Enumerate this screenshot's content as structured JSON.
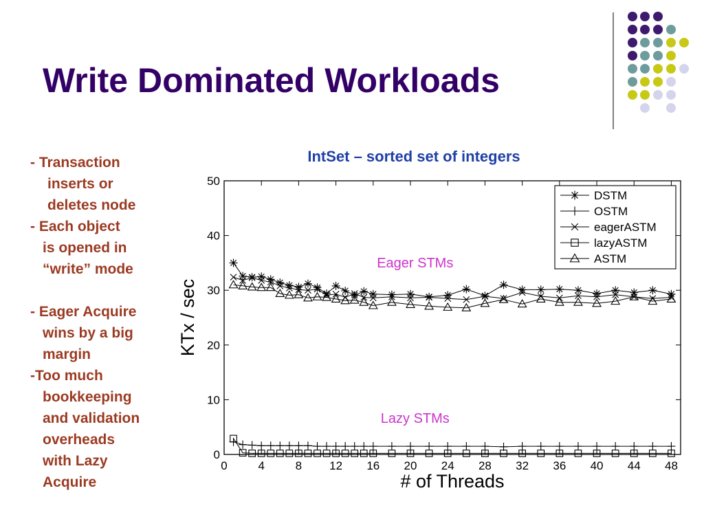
{
  "slide": {
    "title": "Write Dominated Workloads",
    "bullets": [
      {
        "prefix": "- ",
        "lines": [
          "Transaction",
          "inserts or",
          "deletes node"
        ]
      },
      {
        "prefix": "- ",
        "lines": [
          "Each object",
          "is opened in",
          "“write” mode"
        ]
      },
      {
        "prefix": "- ",
        "lines": [
          "Eager Acquire",
          "wins by a big",
          "margin"
        ]
      },
      {
        "prefix": "-",
        "lines": [
          "Too much",
          "bookkeeping",
          "and validation",
          "overheads",
          "with Lazy",
          "Acquire"
        ]
      }
    ],
    "colors": {
      "title": "#330066",
      "bullets": "#9b3a22",
      "chart_title": "#1f3fa8",
      "annotation": "#cc33cc"
    },
    "decoration": {
      "dot_colors": {
        "purple": "#3d1a6e",
        "teal": "#6e9c9c",
        "yellow": "#c8c816",
        "lavender": "#d4d4ec"
      }
    }
  },
  "chart_data": {
    "type": "line",
    "title": "IntSet – sorted set of integers",
    "xlabel": "# of Threads",
    "ylabel": "KTx / sec",
    "xlim": [
      0,
      49
    ],
    "ylim": [
      0,
      50
    ],
    "xticks": [
      0,
      4,
      8,
      12,
      16,
      20,
      24,
      28,
      32,
      36,
      40,
      44,
      48
    ],
    "yticks": [
      0,
      10,
      20,
      30,
      40,
      50
    ],
    "legend_position": "top-right",
    "annotations": [
      {
        "text": "Eager STMs",
        "x": 20.5,
        "y": 34.2
      },
      {
        "text": "Lazy STMs",
        "x": 20.5,
        "y": 5.8
      }
    ],
    "series": [
      {
        "name": "DSTM",
        "marker": "asterisk",
        "x": [
          1,
          2,
          3,
          4,
          5,
          6,
          7,
          8,
          9,
          10,
          11,
          12,
          13,
          14,
          15,
          16,
          18,
          20,
          22,
          24,
          26,
          28,
          30,
          32,
          34,
          36,
          38,
          40,
          42,
          44,
          46,
          48
        ],
        "y": [
          35,
          32.6,
          32.4,
          32.5,
          32,
          31.4,
          30.9,
          30.6,
          31.2,
          30.5,
          29.4,
          30.8,
          29.9,
          29.1,
          29.8,
          29.3,
          29.2,
          29.3,
          28.8,
          29.1,
          30.2,
          29,
          31,
          30.1,
          30.1,
          30.2,
          30,
          29.4,
          30,
          29.6,
          30,
          29.3
        ]
      },
      {
        "name": "OSTM",
        "marker": "plus",
        "x": [
          1,
          2,
          3,
          4,
          5,
          6,
          7,
          8,
          9,
          10,
          11,
          12,
          13,
          14,
          15,
          16,
          18,
          20,
          22,
          24,
          26,
          28,
          30,
          32,
          34,
          36,
          38,
          40,
          42,
          44,
          46,
          48
        ],
        "y": [
          2.3,
          1.8,
          1.7,
          1.6,
          1.6,
          1.6,
          1.6,
          1.6,
          1.6,
          1.5,
          1.5,
          1.5,
          1.5,
          1.5,
          1.5,
          1.5,
          1.5,
          1.5,
          1.5,
          1.5,
          1.5,
          1.5,
          1.4,
          1.5,
          1.5,
          1.5,
          1.5,
          1.5,
          1.5,
          1.5,
          1.5,
          1.5
        ]
      },
      {
        "name": "eagerASTM",
        "marker": "cross",
        "x": [
          1,
          2,
          3,
          4,
          5,
          6,
          7,
          8,
          9,
          10,
          11,
          12,
          13,
          14,
          15,
          16,
          18,
          20,
          22,
          24,
          26,
          28,
          30,
          32,
          34,
          36,
          38,
          40,
          42,
          44,
          46,
          48
        ],
        "y": [
          32.4,
          31.8,
          32.3,
          31.8,
          31.5,
          30.8,
          30.4,
          30.1,
          30,
          30.2,
          29.1,
          29.3,
          28.7,
          29.4,
          28.7,
          28.6,
          28.8,
          28.6,
          28.7,
          28.5,
          28.3,
          28.9,
          28.5,
          29.6,
          28.9,
          28.6,
          29,
          28.8,
          29.2,
          28.8,
          28.5,
          28.7
        ]
      },
      {
        "name": "lazyASTM",
        "marker": "square",
        "x": [
          1,
          2,
          3,
          4,
          5,
          6,
          7,
          8,
          9,
          10,
          11,
          12,
          13,
          14,
          15,
          16,
          18,
          20,
          22,
          24,
          26,
          28,
          30,
          32,
          34,
          36,
          38,
          40,
          42,
          44,
          46,
          48
        ],
        "y": [
          2.9,
          0.3,
          0.2,
          0.2,
          0.2,
          0.2,
          0.2,
          0.2,
          0.2,
          0.2,
          0.2,
          0.2,
          0.2,
          0.2,
          0.2,
          0.2,
          0.2,
          0.2,
          0.2,
          0.2,
          0.2,
          0.2,
          0.2,
          0.2,
          0.2,
          0.2,
          0.2,
          0.2,
          0.2,
          0.2,
          0.2,
          0.2
        ]
      },
      {
        "name": "ASTM",
        "marker": "triangle",
        "x": [
          1,
          2,
          3,
          4,
          5,
          6,
          7,
          8,
          9,
          10,
          11,
          12,
          13,
          14,
          15,
          16,
          18,
          20,
          22,
          24,
          26,
          28,
          30,
          32,
          34,
          36,
          38,
          40,
          42,
          44,
          46,
          48
        ],
        "y": [
          31,
          30.8,
          30.6,
          30.5,
          30.5,
          29.4,
          29.1,
          29.2,
          28.6,
          28.8,
          28.7,
          28.4,
          28.1,
          28.2,
          27.8,
          27.2,
          27.8,
          27.4,
          27.1,
          26.9,
          26.8,
          27.6,
          28.3,
          27.5,
          28.4,
          27.8,
          27.8,
          27.6,
          28,
          28.8,
          28,
          28.4
        ]
      }
    ]
  }
}
